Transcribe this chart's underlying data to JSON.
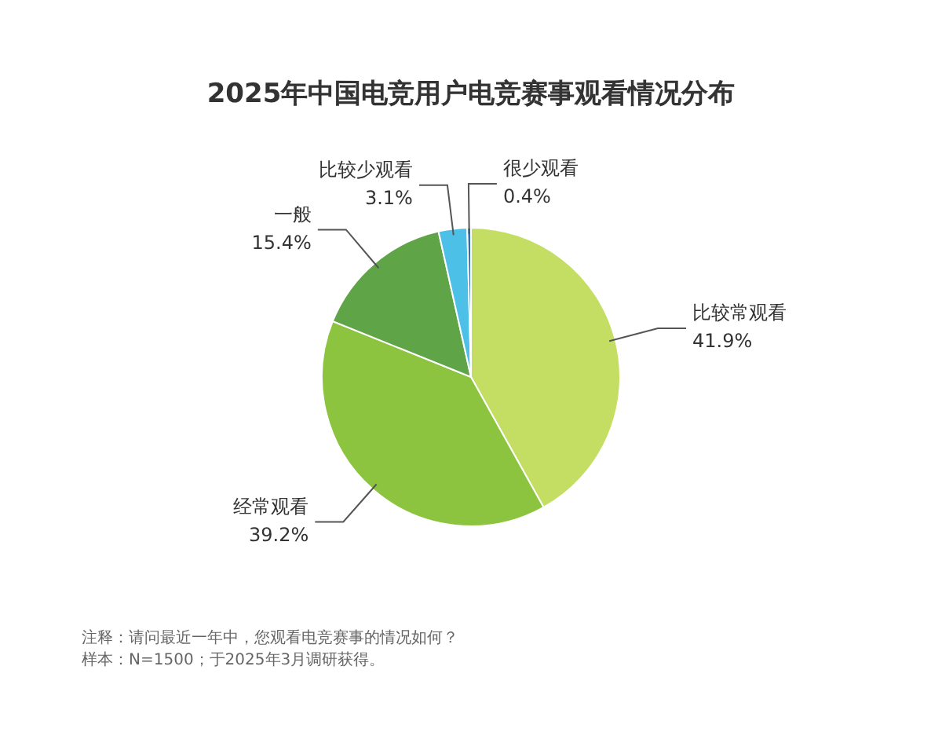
{
  "chart_data": {
    "type": "pie",
    "title": "2025年中国电竞用户电竞赛事观看情况分布",
    "categories": [
      "比较常观看",
      "经常观看",
      "一般",
      "比较少观看",
      "很少观看"
    ],
    "values": [
      41.9,
      39.2,
      15.4,
      3.1,
      0.4
    ],
    "colors": [
      "#c4de63",
      "#8cc43f",
      "#5fa447",
      "#4cc0e6",
      "#2f6fa8"
    ],
    "value_labels": [
      "41.9%",
      "39.2%",
      "15.4%",
      "3.1%",
      "0.4%"
    ],
    "legend": false,
    "annotations": [
      "注释：请问最近一年中，您观看电竞赛事的情况如何？",
      "样本：N=1500；于2025年3月调研获得。"
    ]
  }
}
